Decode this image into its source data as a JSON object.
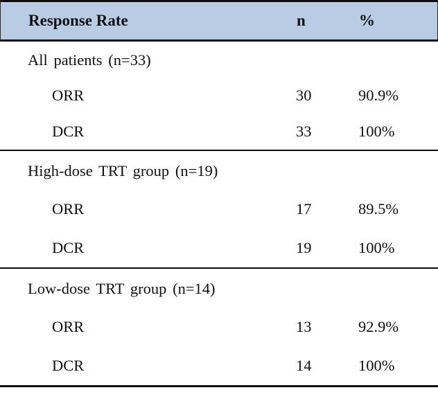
{
  "colors": {
    "header_bg": "#b8cce4",
    "border": "#0c0c0c",
    "text": "#111111"
  },
  "table": {
    "header": {
      "label": "Response Rate",
      "n": "n",
      "pct": "%"
    },
    "sections": [
      {
        "label": "All patients (n=33)",
        "rows": [
          {
            "label": "ORR",
            "n": "30",
            "pct": "90.9%"
          },
          {
            "label": "DCR",
            "n": "33",
            "pct": "100%"
          }
        ]
      },
      {
        "label": "High-dose TRT group (n=19)",
        "rows": [
          {
            "label": "ORR",
            "n": "17",
            "pct": "89.5%"
          },
          {
            "label": "DCR",
            "n": "19",
            "pct": "100%"
          }
        ]
      },
      {
        "label": "Low-dose TRT group (n=14)",
        "rows": [
          {
            "label": "ORR",
            "n": "13",
            "pct": "92.9%"
          },
          {
            "label": "DCR",
            "n": "14",
            "pct": "100%"
          }
        ]
      }
    ]
  }
}
